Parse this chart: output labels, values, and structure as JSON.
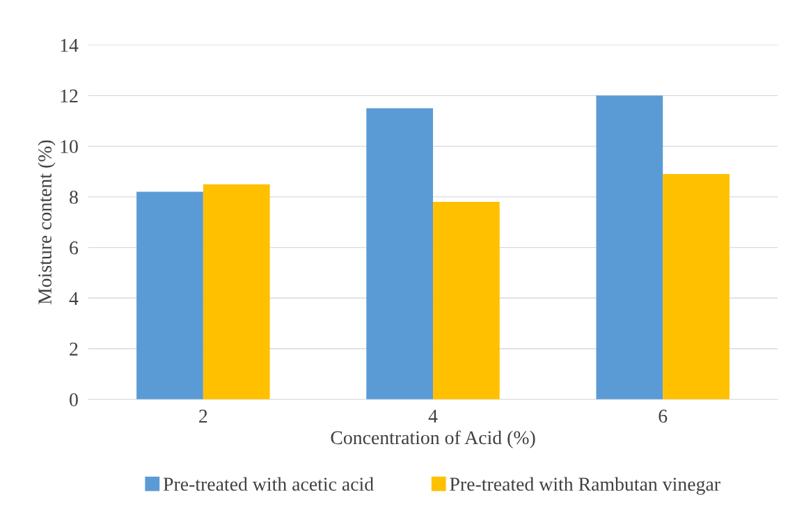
{
  "chart_data": {
    "type": "bar",
    "xlabel": "Concentration of Acid (%)",
    "ylabel": "Moisture content (%)",
    "categories": [
      "2",
      "4",
      "6"
    ],
    "series": [
      {
        "name": "Pre-treated with acetic acid",
        "color": "#5b9bd5",
        "values": [
          8.2,
          11.5,
          12.0
        ]
      },
      {
        "name": "Pre-treated with Rambutan vinegar",
        "color": "#ffc000",
        "values": [
          8.5,
          7.8,
          8.9
        ]
      }
    ],
    "ylim": [
      0,
      14
    ],
    "yticks": [
      0,
      2,
      4,
      6,
      8,
      10,
      12,
      14
    ],
    "grid": "y",
    "legend": "bottom"
  }
}
